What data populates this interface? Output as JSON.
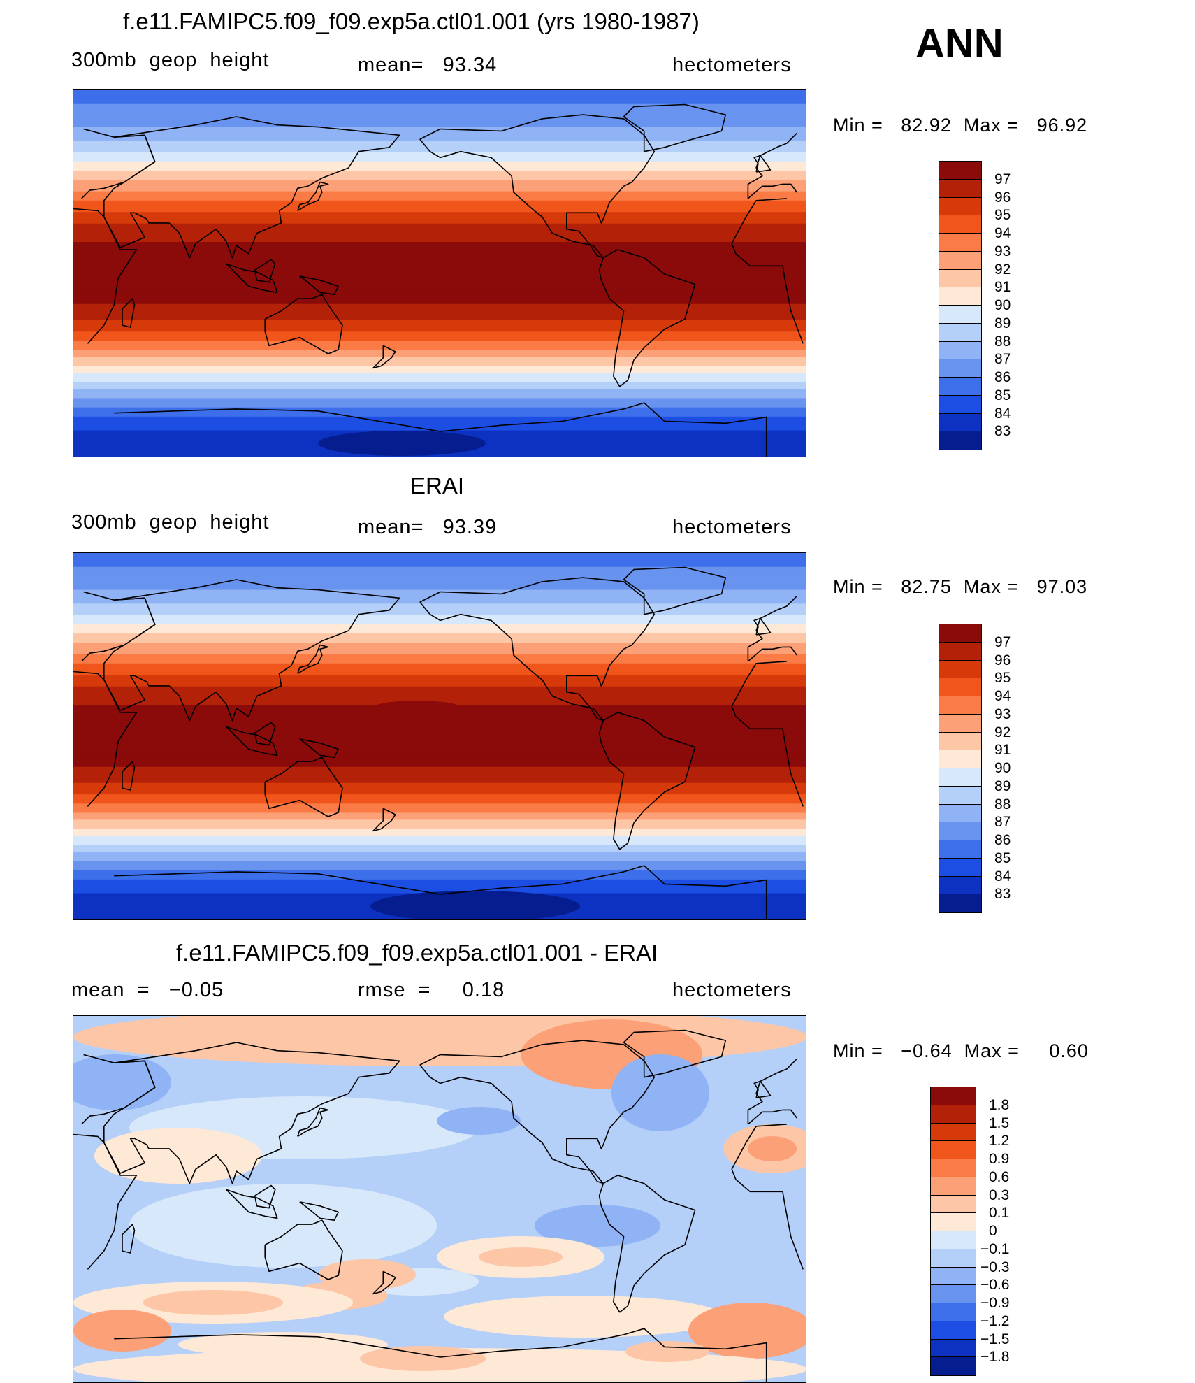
{
  "season": "ANN",
  "panels": [
    {
      "id": "model",
      "title": "f.e11.FAMIPC5.f09_f09.exp5a.ctl01.001 (yrs 1980-1987)",
      "left_label": "300mb  geop  height",
      "center_label": "mean=   93.34",
      "right_label": "hectometers",
      "minmax": "Min =   82.92  Max =   96.92"
    },
    {
      "id": "obs",
      "title": "ERAI",
      "left_label": "300mb  geop  height",
      "center_label": "mean=   93.39",
      "right_label": "hectometers",
      "minmax": "Min =   82.75  Max =   97.03"
    },
    {
      "id": "diff",
      "title": "f.e11.FAMIPC5.f09_f09.exp5a.ctl01.001 - ERAI",
      "left_label": "mean  =   −0.05",
      "center_label": "rmse  =     0.18",
      "right_label": "hectometers",
      "minmax": "Min =   −0.64  Max =     0.60"
    }
  ],
  "chart_data": [
    {
      "type": "heatmap",
      "title": "f.e11.FAMIPC5.f09_f09.exp5a.ctl01.001 (yrs 1980-1987)",
      "variable": "300mb geop height",
      "units": "hectometers",
      "mean": 93.34,
      "min": 82.92,
      "max": 96.92,
      "colorbar_levels": [
        "97",
        "96",
        "95",
        "94",
        "93",
        "92",
        "91",
        "90",
        "89",
        "88",
        "87",
        "86",
        "85",
        "84",
        "83"
      ],
      "colors": [
        "#8b0a0a",
        "#b32208",
        "#d63a0a",
        "#f0551b",
        "#fa7b45",
        "#fca077",
        "#fdc6a6",
        "#fee8d6",
        "#d8e8fb",
        "#b4cff8",
        "#8fb3f4",
        "#6893ef",
        "#3e6feb",
        "#1c4ee3",
        "#0d32c2",
        "#061d8f"
      ]
    },
    {
      "type": "heatmap",
      "title": "ERAI",
      "variable": "300mb geop height",
      "units": "hectometers",
      "mean": 93.39,
      "min": 82.75,
      "max": 97.03,
      "colorbar_levels": [
        "97",
        "96",
        "95",
        "94",
        "93",
        "92",
        "91",
        "90",
        "89",
        "88",
        "87",
        "86",
        "85",
        "84",
        "83"
      ],
      "colors": [
        "#8b0a0a",
        "#b32208",
        "#d63a0a",
        "#f0551b",
        "#fa7b45",
        "#fca077",
        "#fdc6a6",
        "#fee8d6",
        "#d8e8fb",
        "#b4cff8",
        "#8fb3f4",
        "#6893ef",
        "#3e6feb",
        "#1c4ee3",
        "#0d32c2",
        "#061d8f"
      ]
    },
    {
      "type": "heatmap",
      "title": "f.e11.FAMIPC5.f09_f09.exp5a.ctl01.001 - ERAI",
      "units": "hectometers",
      "mean": -0.05,
      "rmse": 0.18,
      "min": -0.64,
      "max": 0.6,
      "colorbar_levels": [
        "1.8",
        "1.5",
        "1.2",
        "0.9",
        "0.6",
        "0.3",
        "0.1",
        "0",
        "−0.1",
        "−0.3",
        "−0.6",
        "−0.9",
        "−1.2",
        "−1.5",
        "−1.8"
      ],
      "colors": [
        "#8b0a0a",
        "#b32208",
        "#d63a0a",
        "#f0551b",
        "#fa7b45",
        "#fca077",
        "#fdc6a6",
        "#fee8d6",
        "#d8e8fb",
        "#b4cff8",
        "#8fb3f4",
        "#6893ef",
        "#3e6feb",
        "#1c4ee3",
        "#0d32c2",
        "#061d8f"
      ]
    }
  ]
}
